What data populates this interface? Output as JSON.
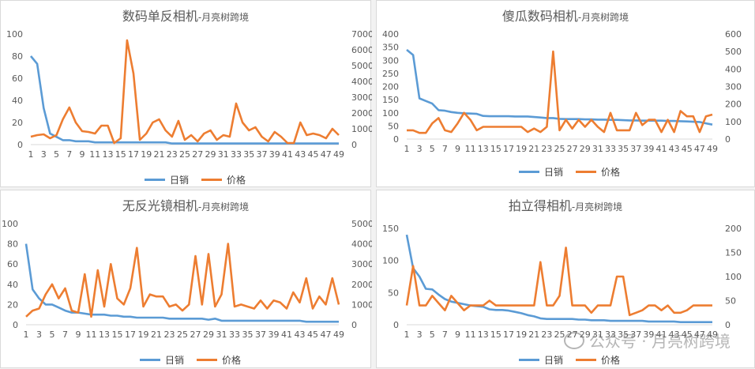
{
  "colors": {
    "sales": "#5b9bd5",
    "price": "#ed7d31",
    "axis": "#595959",
    "grid": "#d9d9d9"
  },
  "watermark": "公众号 · 月亮树跨境",
  "chart_data": [
    {
      "type": "line",
      "title": "数码单反相机",
      "subtitle": "-月亮树跨境",
      "legend": [
        "日销",
        "价格"
      ],
      "legend_position": "bottom",
      "x_labels": [
        "1",
        "3",
        "5",
        "7",
        "9",
        "11",
        "13",
        "15",
        "17",
        "19",
        "21",
        "23",
        "25",
        "27",
        "29",
        "31",
        "33",
        "35",
        "37",
        "39",
        "41",
        "43",
        "45",
        "47",
        "49"
      ],
      "ylim_left": [
        0,
        100
      ],
      "yticks_left": [
        0,
        20,
        40,
        60,
        80,
        100
      ],
      "ylim_right": [
        0,
        7000
      ],
      "yticks_right": [
        0,
        1000,
        2000,
        3000,
        4000,
        5000,
        6000,
        7000
      ],
      "grid": false,
      "series": [
        {
          "name": "日销",
          "axis": "left",
          "values": [
            80,
            73,
            33,
            10,
            7,
            4,
            4,
            3,
            3,
            3,
            2,
            2,
            2,
            2,
            2,
            2,
            2,
            2,
            2,
            2,
            2,
            2,
            1,
            1,
            1,
            1,
            1,
            1,
            1,
            1,
            1,
            1,
            1,
            1,
            1,
            1,
            1,
            1,
            1,
            1,
            1,
            1,
            1,
            1,
            1,
            1,
            1,
            1,
            1
          ]
        },
        {
          "name": "价格",
          "axis": "right",
          "values": [
            500,
            600,
            650,
            400,
            600,
            1600,
            2350,
            1400,
            850,
            800,
            700,
            1200,
            1200,
            100,
            400,
            6600,
            4500,
            300,
            700,
            1400,
            1600,
            900,
            500,
            1500,
            300,
            600,
            200,
            700,
            900,
            300,
            600,
            500,
            2600,
            1400,
            900,
            1100,
            500,
            200,
            800,
            500,
            100,
            100,
            1400,
            600,
            700,
            600,
            400,
            1000,
            600
          ]
        }
      ]
    },
    {
      "type": "line",
      "title": "傻瓜数码相机",
      "subtitle": "-月亮树跨境",
      "legend": [
        "日销",
        "价格"
      ],
      "legend_position": "bottom",
      "x_labels": [
        "1",
        "3",
        "5",
        "7",
        "9",
        "11",
        "13",
        "15",
        "17",
        "19",
        "21",
        "23",
        "25",
        "27",
        "29",
        "31",
        "33",
        "35",
        "37",
        "39",
        "41",
        "43",
        "45",
        "47",
        "49"
      ],
      "ylim_left": [
        0,
        400
      ],
      "yticks_left": [
        0,
        50,
        100,
        150,
        200,
        250,
        300,
        350,
        400
      ],
      "ylim_right": [
        0,
        600
      ],
      "yticks_right": [
        0,
        100,
        200,
        300,
        400,
        500,
        600
      ],
      "grid": false,
      "series": [
        {
          "name": "日销",
          "axis": "left",
          "values": [
            340,
            320,
            155,
            145,
            135,
            110,
            108,
            103,
            100,
            98,
            97,
            96,
            88,
            87,
            87,
            87,
            87,
            86,
            86,
            86,
            84,
            82,
            80,
            80,
            77,
            76,
            76,
            76,
            75,
            75,
            74,
            74,
            73,
            73,
            72,
            71,
            71,
            70,
            70,
            70,
            70,
            69,
            69,
            68,
            67,
            66,
            65,
            60,
            55
          ]
        },
        {
          "name": "价格",
          "axis": "right",
          "values": [
            50,
            50,
            35,
            35,
            90,
            120,
            50,
            40,
            90,
            150,
            110,
            50,
            70,
            70,
            70,
            70,
            70,
            70,
            70,
            40,
            60,
            40,
            70,
            500,
            50,
            110,
            60,
            110,
            70,
            110,
            70,
            40,
            150,
            50,
            50,
            50,
            150,
            80,
            110,
            110,
            40,
            110,
            40,
            160,
            130,
            130,
            40,
            130,
            140
          ]
        }
      ]
    },
    {
      "type": "line",
      "title": "无反光镜相机",
      "subtitle": "-月亮树跨境",
      "legend": [
        "日销",
        "价格"
      ],
      "legend_position": "bottom",
      "x_labels": [
        "1",
        "3",
        "5",
        "7",
        "9",
        "11",
        "13",
        "15",
        "17",
        "19",
        "21",
        "23",
        "25",
        "27",
        "29",
        "31",
        "33",
        "35",
        "37",
        "39",
        "41",
        "43",
        "45",
        "47",
        "49"
      ],
      "ylim_left": [
        0,
        100
      ],
      "yticks_left": [
        0,
        20,
        40,
        60,
        80,
        100
      ],
      "ylim_right": [
        0,
        5000
      ],
      "yticks_right": [
        0,
        1000,
        2000,
        3000,
        4000,
        5000
      ],
      "grid": false,
      "series": [
        {
          "name": "日销",
          "axis": "left",
          "values": [
            80,
            35,
            26,
            20,
            20,
            17,
            14,
            12,
            12,
            11,
            10,
            10,
            10,
            9,
            9,
            8,
            8,
            7,
            7,
            7,
            7,
            7,
            6,
            6,
            6,
            6,
            6,
            6,
            5,
            6,
            4,
            4,
            4,
            4,
            4,
            4,
            4,
            4,
            4,
            4,
            4,
            4,
            4,
            3,
            3,
            3,
            3,
            3,
            3
          ]
        },
        {
          "name": "价格",
          "axis": "right",
          "values": [
            400,
            700,
            800,
            1500,
            2000,
            1300,
            1800,
            700,
            600,
            2500,
            400,
            2700,
            900,
            3000,
            1300,
            1000,
            1800,
            3800,
            900,
            1500,
            1400,
            1400,
            900,
            1000,
            700,
            1000,
            3400,
            1000,
            3500,
            900,
            1500,
            4000,
            900,
            1000,
            900,
            800,
            1200,
            800,
            1200,
            1100,
            800,
            1600,
            1100,
            2300,
            800,
            1400,
            1000,
            2300,
            1000
          ]
        }
      ]
    },
    {
      "type": "line",
      "title": "拍立得相机",
      "subtitle": "-月亮树跨境",
      "legend": [
        "日销",
        "价格"
      ],
      "legend_position": "bottom",
      "x_labels": [
        "1",
        "3",
        "5",
        "7",
        "9",
        "11",
        "13",
        "15",
        "17",
        "19",
        "21",
        "23",
        "25",
        "27",
        "29",
        "31",
        "33",
        "35",
        "37",
        "39",
        "41",
        "43",
        "45",
        "47",
        "49"
      ],
      "ylim_left": [
        0,
        150
      ],
      "yticks_left": [
        0,
        50,
        100,
        150
      ],
      "ylim_right": [
        0,
        200
      ],
      "yticks_right": [
        0,
        50,
        100,
        150,
        200
      ],
      "grid": false,
      "series": [
        {
          "name": "日销",
          "axis": "left",
          "values": [
            140,
            88,
            75,
            56,
            55,
            47,
            40,
            36,
            34,
            32,
            30,
            29,
            28,
            24,
            23,
            23,
            22,
            20,
            18,
            15,
            13,
            10,
            9,
            9,
            9,
            9,
            9,
            8,
            8,
            7,
            7,
            7,
            6,
            6,
            6,
            6,
            6,
            6,
            5,
            5,
            5,
            5,
            5,
            4,
            4,
            4,
            4,
            4,
            4
          ]
        },
        {
          "name": "价格",
          "axis": "right",
          "values": [
            40,
            122,
            40,
            40,
            60,
            45,
            30,
            60,
            45,
            30,
            40,
            40,
            40,
            50,
            40,
            40,
            40,
            40,
            40,
            40,
            40,
            130,
            40,
            40,
            60,
            160,
            40,
            40,
            40,
            25,
            40,
            40,
            40,
            100,
            100,
            20,
            25,
            30,
            40,
            40,
            30,
            40,
            25,
            25,
            30,
            40,
            40,
            40,
            40
          ]
        }
      ]
    }
  ]
}
